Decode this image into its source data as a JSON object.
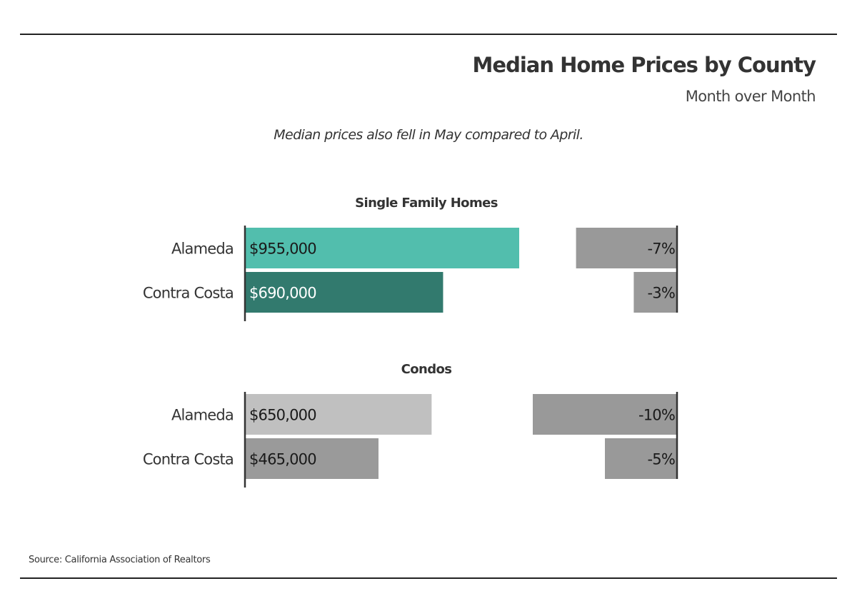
{
  "title": "Median Home Prices by County",
  "subtitle": "Month over Month",
  "annotation": "Median prices also fell in May compared to April.",
  "source": "Source:  California Association of Realtors",
  "colors": {
    "sfh_alameda": "#52bead",
    "sfh_contra_costa": "#327a6e",
    "condo_alameda": "#c0c0c0",
    "condo_contra_costa": "#9a9a9a",
    "change_bar": "#999999",
    "axis": "#333333"
  },
  "chart_data": [
    {
      "type": "bar",
      "title": "Single Family Homes",
      "categories": [
        "Alameda",
        "Contra Costa"
      ],
      "series": [
        {
          "values": [
            955000,
            690000
          ],
          "labels": [
            "$955,000",
            "$690,000"
          ]
        },
        {
          "values": [
            -7,
            -3
          ],
          "labels": [
            "-7%",
            "-3%"
          ]
        }
      ]
    },
    {
      "type": "bar",
      "title": "Condos",
      "categories": [
        "Alameda",
        "Contra Costa"
      ],
      "series": [
        {
          "values": [
            650000,
            465000
          ],
          "labels": [
            "$650,000",
            "$465,000"
          ]
        },
        {
          "values": [
            -10,
            -5
          ],
          "labels": [
            "-10%",
            "-5%"
          ]
        }
      ]
    }
  ]
}
